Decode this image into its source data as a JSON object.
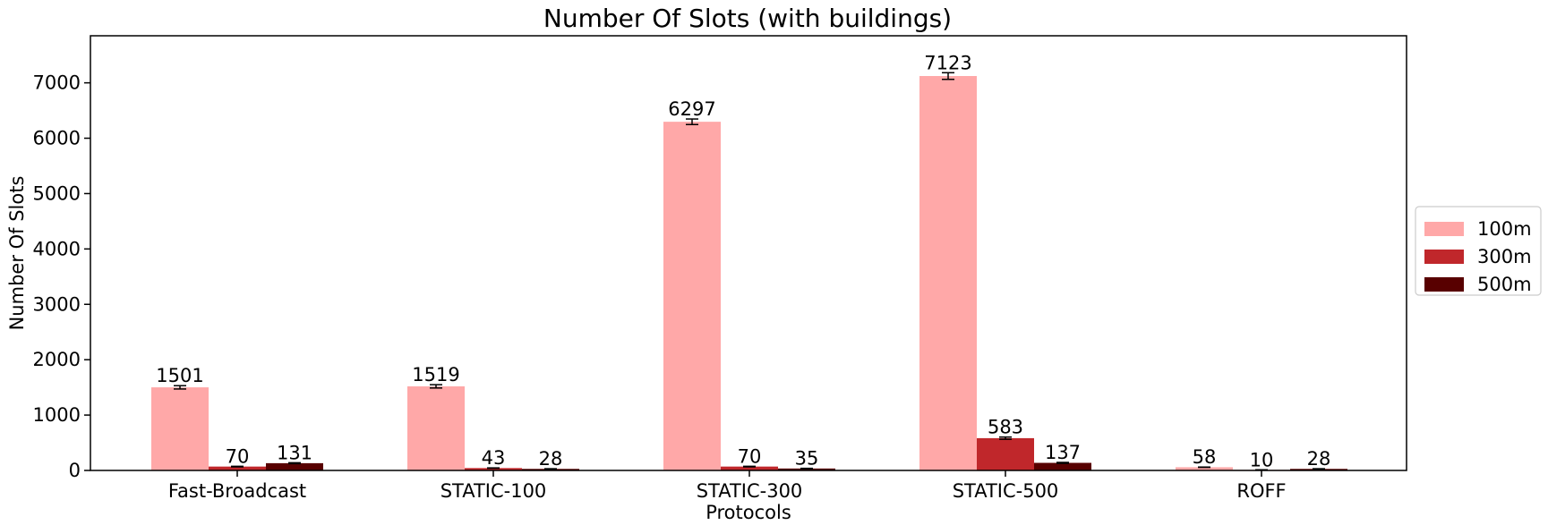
{
  "chart_data": {
    "type": "bar",
    "title": "Number Of Slots (with buildings)",
    "xlabel": "Protocols",
    "ylabel": "Number Of Slots",
    "categories": [
      "Fast-Broadcast",
      "STATIC-100",
      "STATIC-300",
      "STATIC-500",
      "ROFF"
    ],
    "series": [
      {
        "name": "100m",
        "values": [
          1501,
          1519,
          6297,
          7123,
          58
        ],
        "errors": [
          30,
          30,
          50,
          60,
          3
        ],
        "color": "#ffa8a8"
      },
      {
        "name": "300m",
        "values": [
          70,
          43,
          70,
          583,
          10
        ],
        "errors": [
          5,
          3,
          5,
          20,
          2
        ],
        "color": "#c0272b"
      },
      {
        "name": "500m",
        "values": [
          131,
          28,
          35,
          137,
          28
        ],
        "errors": [
          8,
          3,
          3,
          8,
          3
        ],
        "color": "#580000"
      }
    ],
    "ylim": [
      0,
      7850
    ],
    "yticks": [
      0,
      1000,
      2000,
      3000,
      4000,
      5000,
      6000,
      7000
    ],
    "grid": false,
    "legend_position": "right"
  }
}
